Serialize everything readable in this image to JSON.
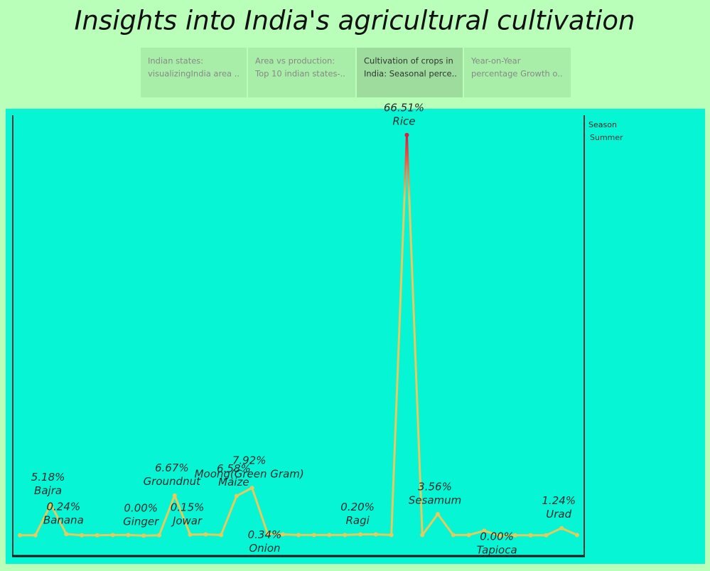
{
  "header": {
    "title": "Insights into India's agricultural cultivation"
  },
  "tabs": [
    {
      "lines": [
        "Indian states:",
        "visualizingIndia area  .."
      ]
    },
    {
      "lines": [
        "Area vs production:",
        "Top 10 indian states-.."
      ]
    },
    {
      "lines": [
        "Cultivation of  crops in",
        "India: Seasonal perce.."
      ],
      "selected": true
    },
    {
      "lines": [
        "Year-on-Year",
        "percentage Growth o.."
      ]
    }
  ],
  "legend": {
    "title": "Season",
    "items": [
      "Summer"
    ]
  },
  "chart_data": {
    "type": "line",
    "categories": [
      null,
      null,
      "Bajra",
      "Banana",
      null,
      null,
      null,
      null,
      "Ginger",
      null,
      "Groundnut",
      "Jowar",
      null,
      null,
      "Maize",
      "Moong(Green Gram)",
      "Onion",
      null,
      null,
      null,
      null,
      null,
      "Ragi",
      null,
      null,
      "Rice",
      null,
      "Sesamum",
      null,
      null,
      null,
      "Tapioca",
      null,
      null,
      null,
      "Urad",
      null
    ],
    "values": [
      0.05,
      0.05,
      5.18,
      0.24,
      0.05,
      0.05,
      0.1,
      0.1,
      0.0,
      0.05,
      6.67,
      0.15,
      0.2,
      0.1,
      6.58,
      7.92,
      0.34,
      0.2,
      0.1,
      0.1,
      0.1,
      0.1,
      0.2,
      0.2,
      0.1,
      66.51,
      0.1,
      3.56,
      0.1,
      0.1,
      0.8,
      0.0,
      0.05,
      0.05,
      0.05,
      1.24,
      0.1
    ],
    "value_labels": [
      null,
      null,
      "5.18%",
      "0.24%",
      null,
      null,
      null,
      null,
      "0.00%",
      null,
      "6.67%",
      "0.15%",
      null,
      null,
      "6.58%",
      "7.92%",
      "0.34%",
      null,
      null,
      null,
      null,
      null,
      "0.20%",
      null,
      null,
      "66.51%",
      null,
      "3.56%",
      null,
      null,
      null,
      "0.00%",
      null,
      null,
      null,
      "1.24%",
      null
    ],
    "ylim": [
      -3.4,
      69.8
    ],
    "color": "#e8c95c",
    "peak_color": "#e2183e"
  }
}
